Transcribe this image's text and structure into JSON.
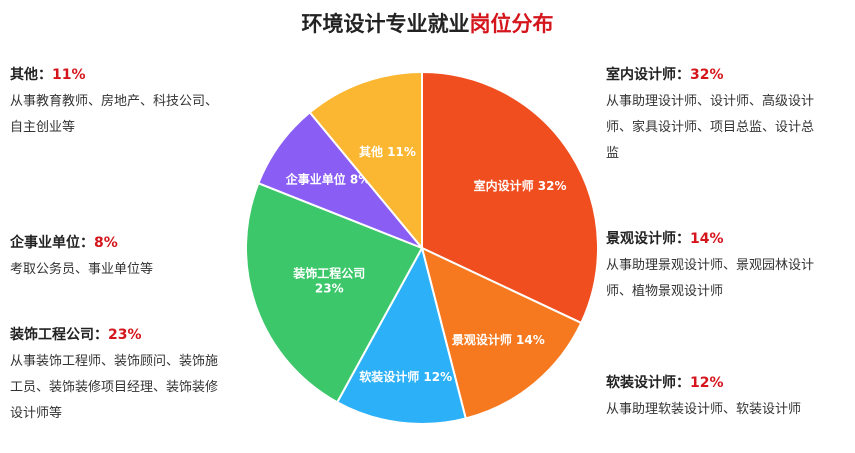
{
  "title": {
    "main": "环境设计专业就业",
    "accent": "岗位分布"
  },
  "colon": "：",
  "chart_data": {
    "type": "pie",
    "slices": [
      {
        "name": "室内设计师",
        "value": 32,
        "label": "室内设计师 32%",
        "color": "#f04e1f"
      },
      {
        "name": "景观设计师",
        "value": 14,
        "label": "景观设计师 14%",
        "color": "#f7791f"
      },
      {
        "name": "软装设计师",
        "value": 12,
        "label": "软装设计师 12%",
        "color": "#2cb0f7"
      },
      {
        "name": "装饰工程公司",
        "value": 23,
        "label_lines": [
          "装饰工程公司",
          "23%"
        ],
        "color": "#3cc76a"
      },
      {
        "name": "企事业单位",
        "value": 8,
        "label": "企事业单位 8%",
        "color": "#8a5ef5"
      },
      {
        "name": "其他",
        "value": 11,
        "label": "其他 11%",
        "color": "#fbb731"
      }
    ]
  },
  "blocks": {
    "other": {
      "head": "其他",
      "pct": "11%",
      "lines": [
        "从事教育教师、房地产、科技公司、",
        "自主创业等"
      ]
    },
    "enterprise": {
      "head": "企事业单位",
      "pct": "8%",
      "lines": [
        "考取公务员、事业单位等"
      ]
    },
    "decoration": {
      "head": "装饰工程公司",
      "pct": "23%",
      "lines": [
        "从事装饰工程师、装饰顾问、装饰施",
        "工员、装饰装修项目经理、装饰装修",
        "设计师等"
      ]
    },
    "interior": {
      "head": "室内设计师",
      "pct": "32%",
      "lines": [
        "从事助理设计师、设计师、高级设计",
        "师、家具设计师、项目总监、设计总",
        "监"
      ]
    },
    "landscape": {
      "head": "景观设计师",
      "pct": "14%",
      "lines": [
        "从事助理景观设计师、景观园林设计",
        "师、植物景观设计师"
      ]
    },
    "soft": {
      "head": "软装设计师",
      "pct": "12%",
      "lines": [
        "从事助理软装设计师、软装设计师"
      ]
    }
  }
}
